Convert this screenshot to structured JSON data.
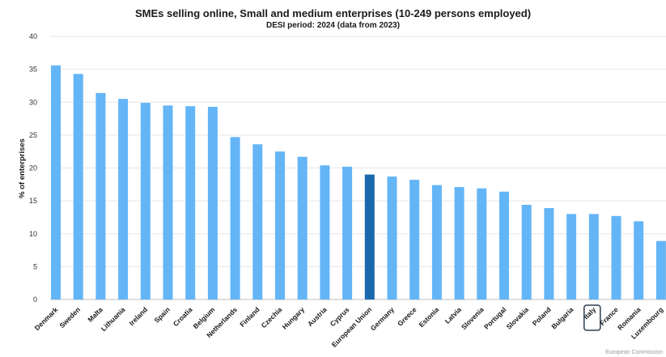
{
  "chart_data": {
    "type": "bar",
    "title": "SMEs selling online, Small and medium enterprises (10-249 persons employed)",
    "subtitle": "DESI period: 2024 (data from 2023)",
    "ylabel": "% of enterprises",
    "xlabel": "",
    "ylim": [
      0,
      40
    ],
    "yticks": [
      0,
      5,
      10,
      15,
      20,
      25,
      30,
      35,
      40
    ],
    "grid": true,
    "categories": [
      "Denmark",
      "Sweden",
      "Malta",
      "Lithuania",
      "Ireland",
      "Spain",
      "Croatia",
      "Belgium",
      "Netherlands",
      "Finland",
      "Czechia",
      "Hungary",
      "Austria",
      "Cyprus",
      "European Union",
      "Germany",
      "Greece",
      "Estonia",
      "Latvia",
      "Slovenia",
      "Portugal",
      "Slovakia",
      "Poland",
      "Bulgaria",
      "Italy",
      "France",
      "Romania",
      "Luxembourg"
    ],
    "values": [
      35.6,
      34.3,
      31.4,
      30.5,
      29.9,
      29.5,
      29.4,
      29.3,
      24.7,
      23.6,
      22.5,
      21.7,
      20.4,
      20.2,
      19.0,
      18.7,
      18.2,
      17.4,
      17.1,
      16.9,
      16.4,
      14.4,
      13.9,
      13.0,
      13.0,
      12.7,
      11.9,
      8.9
    ],
    "highlight_category": "European Union",
    "boxed_category": "Italy",
    "colors": {
      "bar": "#64b5f6",
      "highlight": "#1a69ae",
      "grid": "#e6e6e6"
    }
  },
  "footer": "European Commission"
}
